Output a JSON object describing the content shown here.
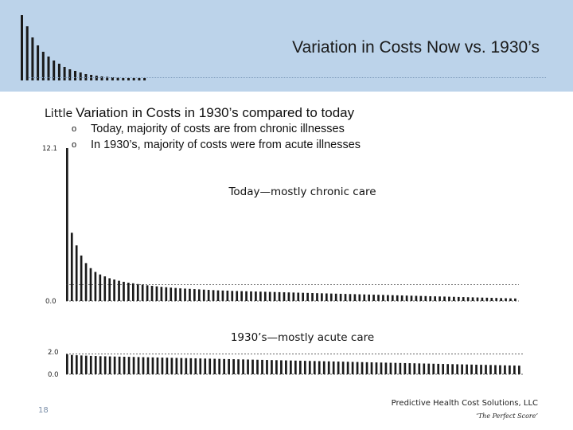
{
  "slide": {
    "title": "Variation in Costs Now vs. 1930’s",
    "heading_prefix": "Little",
    "heading": "Variation in Costs in 1930’s compared to today",
    "bullets": [
      {
        "marker": "o",
        "text": "Today, majority of costs are from chronic illnesses"
      },
      {
        "marker": "o",
        "text": "In 1930’s, majority of costs were from acute illnesses"
      }
    ],
    "slide_number": "18",
    "company": "Predictive Health Cost Solutions, LLC",
    "tagline": "‘The Perfect Score’"
  },
  "colors": {
    "header_bg": "#bcd3ea",
    "bars": "#1a1a1a",
    "dash": "#7f9cbc"
  },
  "chart_data": [
    {
      "type": "bar",
      "title": "Today—mostly chronic care",
      "ylim": [
        0.0,
        12.1
      ],
      "ytick_labels": [
        "12.1",
        "0.0"
      ],
      "values": [
        12.1,
        5.4,
        4.4,
        3.6,
        3.0,
        2.6,
        2.3,
        2.1,
        1.95,
        1.8,
        1.7,
        1.6,
        1.52,
        1.45,
        1.4,
        1.34,
        1.29,
        1.24,
        1.2,
        1.16,
        1.12,
        1.09,
        1.06,
        1.03,
        1.0,
        0.98,
        0.96,
        0.94,
        0.92,
        0.9,
        0.88,
        0.86,
        0.84,
        0.83,
        0.82,
        0.8,
        0.79,
        0.78,
        0.77,
        0.76,
        0.75,
        0.74,
        0.73,
        0.72,
        0.71,
        0.7,
        0.69,
        0.68,
        0.67,
        0.66,
        0.65,
        0.64,
        0.63,
        0.62,
        0.61,
        0.6,
        0.59,
        0.58,
        0.57,
        0.56,
        0.55,
        0.54,
        0.53,
        0.52,
        0.51,
        0.5,
        0.49,
        0.48,
        0.47,
        0.46,
        0.45,
        0.44,
        0.43,
        0.42,
        0.41,
        0.4,
        0.39,
        0.38,
        0.37,
        0.36,
        0.35,
        0.34,
        0.33,
        0.32,
        0.31,
        0.3,
        0.29,
        0.28,
        0.27,
        0.26,
        0.25,
        0.24,
        0.23,
        0.22,
        0.21,
        0.2
      ],
      "reference_line": 1.3,
      "grid": false
    },
    {
      "type": "bar",
      "title": "1930’s—mostly acute care",
      "ylim": [
        0.0,
        2.0
      ],
      "ytick_labels": [
        "2.0",
        "0.0"
      ],
      "values": [
        1.85,
        1.8,
        1.77,
        1.75,
        1.73,
        1.71,
        1.7,
        1.68,
        1.67,
        1.66,
        1.65,
        1.64,
        1.63,
        1.62,
        1.61,
        1.6,
        1.59,
        1.58,
        1.57,
        1.56,
        1.55,
        1.54,
        1.53,
        1.52,
        1.51,
        1.5,
        1.49,
        1.48,
        1.47,
        1.46,
        1.45,
        1.44,
        1.43,
        1.42,
        1.41,
        1.4,
        1.39,
        1.38,
        1.37,
        1.36,
        1.35,
        1.34,
        1.33,
        1.32,
        1.31,
        1.3,
        1.29,
        1.28,
        1.27,
        1.26,
        1.25,
        1.24,
        1.23,
        1.22,
        1.21,
        1.2,
        1.19,
        1.18,
        1.17,
        1.16,
        1.15,
        1.14,
        1.13,
        1.12,
        1.11,
        1.1,
        1.09,
        1.08,
        1.07,
        1.06,
        1.05,
        1.04,
        1.03,
        1.02,
        1.01,
        1.0,
        0.99,
        0.98,
        0.97,
        0.96,
        0.95,
        0.94,
        0.93,
        0.92,
        0.91,
        0.9,
        0.89,
        0.88,
        0.87,
        0.86,
        0.85,
        0.84,
        0.83,
        0.82,
        0.81,
        0.8
      ],
      "reference_line": 1.9,
      "grid": false
    }
  ]
}
